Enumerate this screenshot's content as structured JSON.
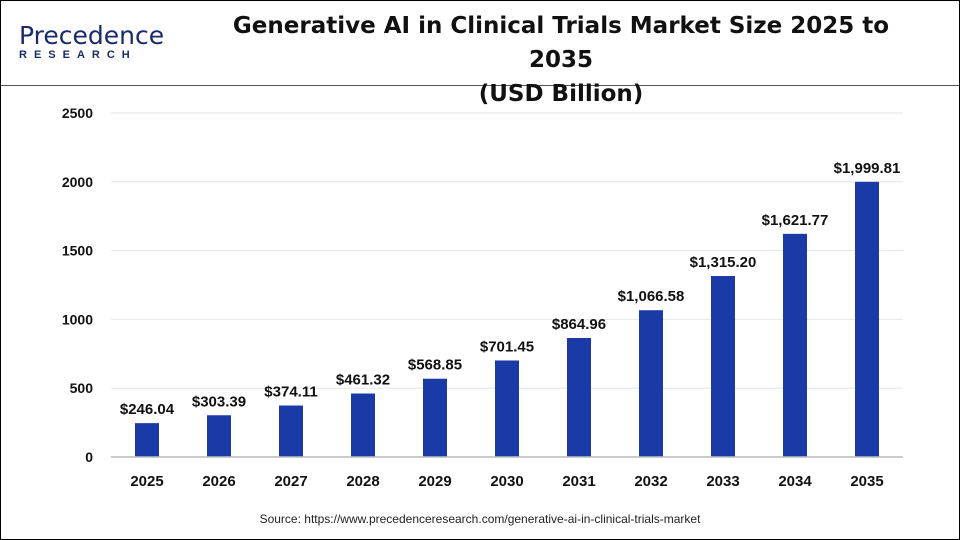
{
  "logo": {
    "line1": "Precedence",
    "line2": "RESEARCH"
  },
  "chart_data": {
    "type": "bar",
    "title": "Generative AI in Clinical Trials Market Size 2025 to 2035 (USD Billion)",
    "title_lines": [
      "Generative AI in Clinical Trials Market Size 2025 to 2035",
      "(USD Billion)"
    ],
    "categories": [
      "2025",
      "2026",
      "2027",
      "2028",
      "2029",
      "2030",
      "2031",
      "2032",
      "2033",
      "2034",
      "2035"
    ],
    "values": [
      246.04,
      303.39,
      374.11,
      461.32,
      568.85,
      701.45,
      864.96,
      1066.58,
      1315.2,
      1621.77,
      1999.81
    ],
    "data_labels": [
      "$246.04",
      "$303.39",
      "$374.11",
      "$461.32",
      "$568.85",
      "$701.45",
      "$864.96",
      "$1,066.58",
      "$1,315.20",
      "$1,621.77",
      "$1,999.81"
    ],
    "yticks": [
      "0",
      "500",
      "1000",
      "1500",
      "2000",
      "2500"
    ],
    "ylim": [
      0,
      2500
    ],
    "xlabel": "",
    "ylabel": "",
    "grid": true,
    "bar_color": "#1a3aa8"
  },
  "source": "Source: https://www.precedenceresearch.com/generative-ai-in-clinical-trials-market"
}
